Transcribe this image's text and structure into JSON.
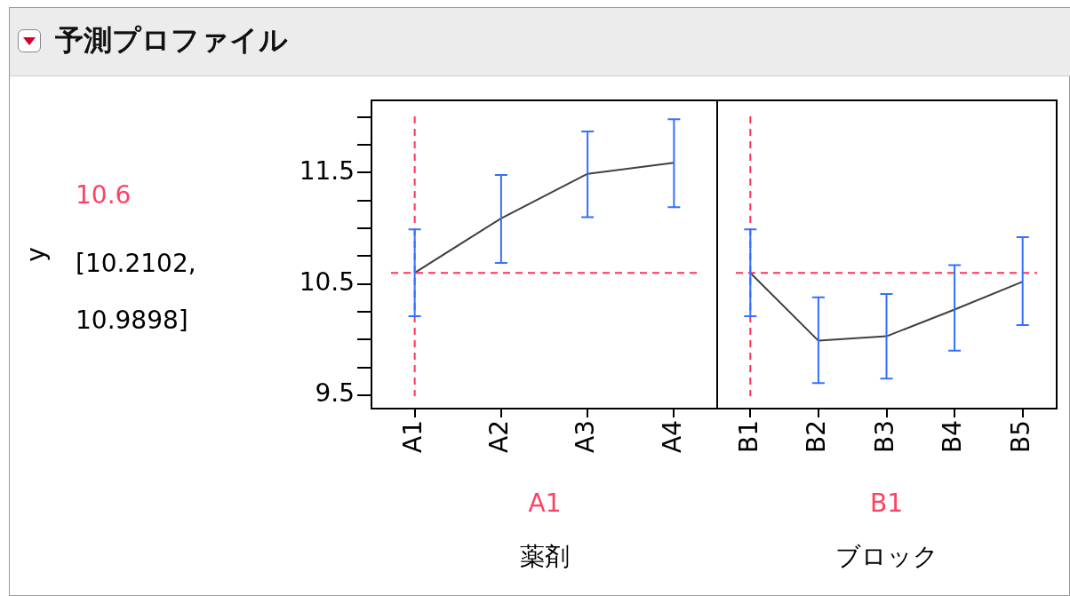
{
  "chart_data": [
    {
      "type": "line",
      "title": "予測プロファイル",
      "ylabel": "y",
      "xlabel": "薬剤",
      "annotations": [
        "10.6",
        "[10.2102, 10.9898]",
        "A1"
      ],
      "categories": [
        "A1",
        "A2",
        "A3",
        "A4"
      ],
      "series": [
        {
          "color": "#404040",
          "values": [
            10.6,
            11.09,
            11.49,
            11.59
          ],
          "errors": [
            [
              10.2102,
              10.9898
            ],
            [
              10.69,
              11.48
            ],
            [
              11.1,
              11.87
            ],
            [
              11.19,
              11.98
            ]
          ]
        }
      ],
      "ylim": [
        9.38,
        12.15
      ],
      "yticks": [
        9.5,
        {
          "value": 9.75,
          "label": null
        },
        {
          "value": 10,
          "label": null
        },
        {
          "value": 10.25,
          "label": null
        },
        10.5,
        {
          "value": 10.75,
          "label": null
        },
        {
          "value": 11,
          "label": null
        },
        {
          "value": 11.25,
          "label": null
        },
        11.5,
        {
          "value": 11.75,
          "label": null
        },
        {
          "value": 12,
          "label": null
        }
      ],
      "ref_lines": [
        {
          "axis": "y",
          "value": 10.6,
          "color": "#ff3355",
          "line_style": "dashed"
        },
        {
          "axis": "x",
          "value": "A1",
          "color": "#ff3355",
          "line_style": "dashed"
        }
      ],
      "marker": "none",
      "line_style": "solid",
      "grid": false,
      "legend": false
    },
    {
      "type": "line",
      "xlabel": "ブロック",
      "annotations": [
        "B1"
      ],
      "categories": [
        "B1",
        "B2",
        "B3",
        "B4",
        "B5"
      ],
      "series": [
        {
          "color": "#404040",
          "values": [
            10.6,
            9.99,
            10.03,
            10.27,
            10.52
          ],
          "errors": [
            [
              10.2102,
              10.9898
            ],
            [
              9.61,
              10.38
            ],
            [
              9.65,
              10.41
            ],
            [
              9.9,
              10.67
            ],
            [
              10.13,
              10.92
            ]
          ]
        }
      ],
      "ylim": [
        9.38,
        12.15
      ],
      "tick_labels": "x",
      "ref_lines": [
        {
          "axis": "y",
          "value": 10.6,
          "color": "#ff3355",
          "line_style": "dashed"
        },
        {
          "axis": "x",
          "value": "B1",
          "color": "#ff3355",
          "line_style": "dashed"
        }
      ],
      "marker": "none",
      "line_style": "solid",
      "grid": false,
      "legend": false
    }
  ]
}
